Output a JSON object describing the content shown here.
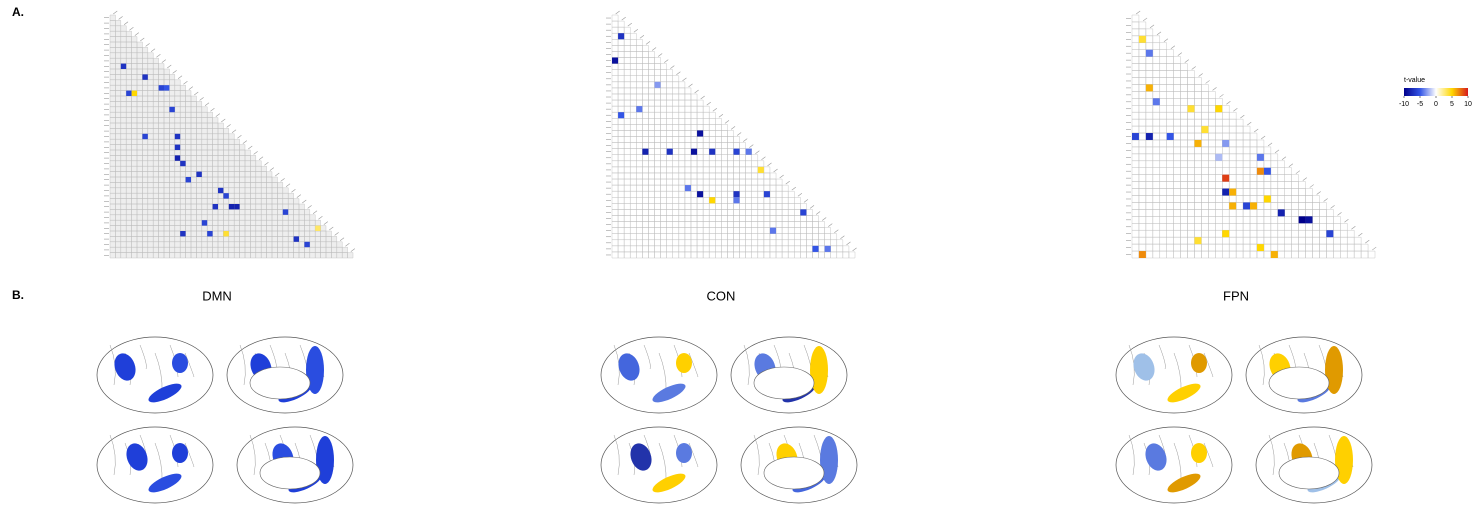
{
  "panel_a": {
    "label": "A.",
    "legend": {
      "title": "t-value",
      "ticks": [
        -10,
        -5,
        0,
        5,
        10
      ],
      "colors": [
        "#00008b",
        "#3355e6",
        "#ffffff",
        "#ffd700",
        "#d7191c"
      ]
    },
    "matrices": [
      {
        "cells": [
          [
            9,
            2,
            -7
          ],
          [
            13,
            9,
            -6
          ],
          [
            13,
            10,
            -5
          ],
          [
            11,
            6,
            -7
          ],
          [
            14,
            3,
            -6
          ],
          [
            14,
            4,
            5
          ],
          [
            17,
            11,
            -6
          ],
          [
            22,
            6,
            -6
          ],
          [
            22,
            12,
            -7
          ],
          [
            24,
            12,
            -7
          ],
          [
            26,
            12,
            -8
          ],
          [
            27,
            13,
            -7
          ],
          [
            29,
            16,
            -7
          ],
          [
            30,
            14,
            -6
          ],
          [
            32,
            20,
            -7
          ],
          [
            33,
            21,
            -6
          ],
          [
            35,
            22,
            -8
          ],
          [
            35,
            19,
            -7
          ],
          [
            35,
            23,
            -8
          ],
          [
            38,
            17,
            -6
          ],
          [
            40,
            13,
            -7
          ],
          [
            40,
            18,
            -6
          ],
          [
            40,
            21,
            4
          ],
          [
            41,
            34,
            -7
          ],
          [
            42,
            36,
            -6
          ],
          [
            36,
            32,
            -6
          ],
          [
            39,
            38,
            3
          ]
        ]
      },
      {
        "cells": [
          [
            3,
            1,
            -7
          ],
          [
            7,
            0,
            -9
          ],
          [
            16,
            1,
            -5
          ],
          [
            15,
            4,
            -4
          ],
          [
            19,
            14,
            -9
          ],
          [
            22,
            5,
            -8
          ],
          [
            22,
            9,
            -7
          ],
          [
            22,
            13,
            -9
          ],
          [
            22,
            16,
            -7
          ],
          [
            22,
            20,
            -6
          ],
          [
            22,
            22,
            -4
          ],
          [
            25,
            24,
            4
          ],
          [
            29,
            14,
            -9
          ],
          [
            29,
            20,
            -7
          ],
          [
            29,
            25,
            -6
          ],
          [
            30,
            16,
            5
          ],
          [
            30,
            20,
            -4
          ],
          [
            28,
            12,
            -4
          ],
          [
            32,
            31,
            -6
          ],
          [
            35,
            26,
            -4
          ],
          [
            38,
            35,
            -4
          ],
          [
            38,
            33,
            -5
          ],
          [
            11,
            7,
            -3
          ]
        ]
      },
      {
        "cells": [
          [
            3,
            1,
            4
          ],
          [
            5,
            2,
            -4
          ],
          [
            10,
            2,
            6
          ],
          [
            12,
            3,
            -4
          ],
          [
            13,
            8,
            4
          ],
          [
            13,
            12,
            5
          ],
          [
            16,
            10,
            4
          ],
          [
            17,
            0,
            -6
          ],
          [
            17,
            2,
            -8
          ],
          [
            17,
            5,
            -5
          ],
          [
            18,
            9,
            6
          ],
          [
            18,
            13,
            -3
          ],
          [
            20,
            12,
            -2
          ],
          [
            20,
            18,
            -4
          ],
          [
            22,
            18,
            7
          ],
          [
            22,
            19,
            -5
          ],
          [
            23,
            13,
            9
          ],
          [
            25,
            13,
            -8
          ],
          [
            25,
            14,
            6
          ],
          [
            27,
            14,
            6
          ],
          [
            26,
            19,
            5
          ],
          [
            27,
            16,
            -6
          ],
          [
            27,
            17,
            6
          ],
          [
            28,
            21,
            -8
          ],
          [
            29,
            24,
            -10
          ],
          [
            29,
            25,
            -9
          ],
          [
            31,
            28,
            -6
          ],
          [
            31,
            13,
            5
          ],
          [
            32,
            9,
            4
          ],
          [
            33,
            18,
            5
          ],
          [
            34,
            20,
            6
          ],
          [
            34,
            1,
            7
          ]
        ]
      }
    ]
  },
  "panel_b": {
    "label": "B.",
    "networks": [
      "DMN",
      "CON",
      "FPN"
    ]
  }
}
